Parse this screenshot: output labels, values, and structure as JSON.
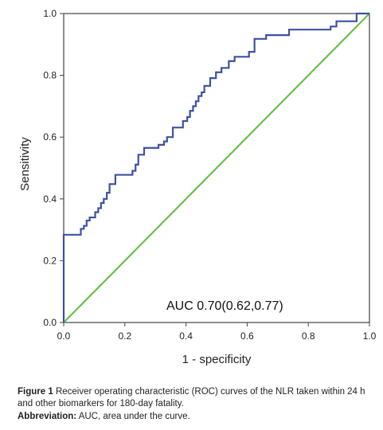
{
  "chart_data": {
    "type": "line",
    "title": "",
    "xlabel": "1 - specificity",
    "ylabel": "Sensitivity",
    "xlim": [
      0,
      1
    ],
    "ylim": [
      0,
      1
    ],
    "x_ticks": [
      "0.0",
      "0.2",
      "0.4",
      "0.6",
      "0.8",
      "1.0"
    ],
    "y_ticks": [
      "0.0",
      "0.2",
      "0.4",
      "0.6",
      "0.8",
      "1.0"
    ],
    "grid": false,
    "annotation": "AUC 0.70(0.62,0.77)",
    "series": [
      {
        "color": "#3f51a0",
        "x": [
          0.0,
          0.0,
          0.056,
          0.056,
          0.066,
          0.066,
          0.075,
          0.075,
          0.085,
          0.085,
          0.103,
          0.103,
          0.113,
          0.113,
          0.122,
          0.122,
          0.131,
          0.131,
          0.141,
          0.141,
          0.15,
          0.15,
          0.169,
          0.169,
          0.225,
          0.225,
          0.235,
          0.235,
          0.244,
          0.244,
          0.263,
          0.263,
          0.31,
          0.31,
          0.328,
          0.328,
          0.338,
          0.338,
          0.357,
          0.357,
          0.39,
          0.39,
          0.404,
          0.404,
          0.413,
          0.413,
          0.423,
          0.423,
          0.432,
          0.432,
          0.441,
          0.441,
          0.451,
          0.451,
          0.46,
          0.46,
          0.479,
          0.479,
          0.498,
          0.498,
          0.516,
          0.516,
          0.54,
          0.54,
          0.559,
          0.559,
          0.606,
          0.606,
          0.624,
          0.624,
          0.662,
          0.662,
          0.737,
          0.737,
          0.75,
          0.75,
          0.873,
          0.873,
          0.892,
          0.892,
          0.958,
          0.958,
          1.0
        ],
        "y": [
          0.0,
          0.284,
          0.284,
          0.303,
          0.303,
          0.313,
          0.313,
          0.33,
          0.33,
          0.34,
          0.34,
          0.357,
          0.357,
          0.37,
          0.37,
          0.387,
          0.387,
          0.4,
          0.4,
          0.42,
          0.42,
          0.448,
          0.448,
          0.478,
          0.478,
          0.491,
          0.491,
          0.511,
          0.511,
          0.543,
          0.543,
          0.565,
          0.565,
          0.575,
          0.575,
          0.586,
          0.586,
          0.6,
          0.6,
          0.631,
          0.631,
          0.652,
          0.652,
          0.665,
          0.665,
          0.685,
          0.685,
          0.7,
          0.7,
          0.716,
          0.716,
          0.733,
          0.733,
          0.745,
          0.745,
          0.766,
          0.766,
          0.791,
          0.791,
          0.81,
          0.81,
          0.824,
          0.824,
          0.846,
          0.846,
          0.86,
          0.86,
          0.876,
          0.876,
          0.918,
          0.918,
          0.93,
          0.93,
          0.948,
          0.948,
          0.948,
          0.948,
          0.958,
          0.958,
          0.975,
          0.975,
          1.0,
          1.0
        ]
      },
      {
        "color": "#6bbf4a",
        "x": [
          0,
          1
        ],
        "y": [
          0,
          1
        ]
      }
    ]
  },
  "caption": {
    "figure_label": "Figure 1",
    "figure_text": "Receiver operating characteristic (ROC) curves of the NLR taken within 24 h and other biomarkers for 180-day fatality.",
    "abbrev_label": "Abbreviation:",
    "abbrev_text": "AUC, area under the curve."
  }
}
